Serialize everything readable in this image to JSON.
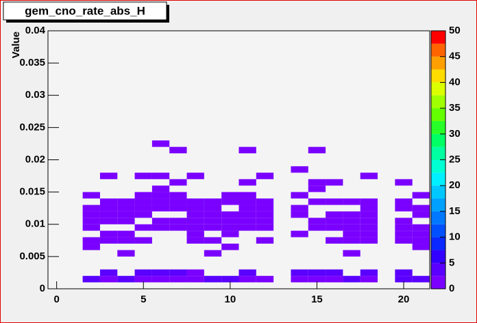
{
  "chart_data": {
    "type": "heatmap",
    "title": "gem_cno_rate_abs_H",
    "y_label": "Value",
    "xlim": [
      -0.5,
      21.5
    ],
    "ylim": [
      0,
      0.04
    ],
    "xticks": [
      0,
      5,
      10,
      15,
      20
    ],
    "yticks": [
      0,
      0.005,
      0.01,
      0.015,
      0.02,
      0.025,
      0.03,
      0.035,
      0.04
    ],
    "zlim": [
      0,
      50
    ],
    "zticks": [
      0,
      5,
      10,
      15,
      20,
      25,
      30,
      35,
      40,
      45,
      50
    ],
    "x_bin_width": 1,
    "y_bin_width": 0.001,
    "palette": [
      "#7a00ff",
      "#5a00ff",
      "#3300ff",
      "#0a28ff",
      "#0050ff",
      "#0078ff",
      "#00a0ff",
      "#00c8ff",
      "#00f0ff",
      "#00ffd2",
      "#00ffa0",
      "#00ff64",
      "#28ff28",
      "#64ff00",
      "#a0ff00",
      "#dcff00",
      "#ffdc00",
      "#ffa000",
      "#ff6400",
      "#ff0000"
    ],
    "cells": [
      [
        2,
        0.0015,
        3
      ],
      [
        3,
        0.0015,
        1
      ],
      [
        4,
        0.0015,
        3
      ],
      [
        5,
        0.0015,
        1
      ],
      [
        6,
        0.0015,
        1
      ],
      [
        7,
        0.0015,
        1
      ],
      [
        8,
        0.0015,
        1
      ],
      [
        9,
        0.0015,
        3
      ],
      [
        10,
        0.0015,
        3
      ],
      [
        11,
        0.0015,
        1
      ],
      [
        12,
        0.0015,
        1
      ],
      [
        14,
        0.0015,
        1
      ],
      [
        15,
        0.0015,
        1
      ],
      [
        16,
        0.0015,
        1
      ],
      [
        17,
        0.0015,
        3
      ],
      [
        18,
        0.0015,
        1
      ],
      [
        20,
        0.0015,
        3
      ],
      [
        21,
        0.0015,
        3
      ],
      [
        3,
        0.0025,
        3
      ],
      [
        5,
        0.0025,
        3
      ],
      [
        6,
        0.0025,
        3
      ],
      [
        7,
        0.0025,
        3
      ],
      [
        8,
        0.0025,
        1
      ],
      [
        11,
        0.0025,
        3
      ],
      [
        14,
        0.0025,
        3
      ],
      [
        15,
        0.0025,
        3
      ],
      [
        16,
        0.0025,
        3
      ],
      [
        18,
        0.0025,
        3
      ],
      [
        20,
        0.0025,
        3
      ],
      [
        4,
        0.0055,
        1
      ],
      [
        9,
        0.0055,
        1
      ],
      [
        17,
        0.0055,
        1
      ],
      [
        2,
        0.0065,
        1
      ],
      [
        10,
        0.0065,
        1
      ],
      [
        21,
        0.0065,
        1
      ],
      [
        2,
        0.0075,
        1
      ],
      [
        3,
        0.0075,
        1
      ],
      [
        4,
        0.0075,
        1
      ],
      [
        5,
        0.0075,
        1
      ],
      [
        8,
        0.0075,
        1
      ],
      [
        9,
        0.0075,
        1
      ],
      [
        12,
        0.0075,
        1
      ],
      [
        16,
        0.0075,
        1
      ],
      [
        17,
        0.0075,
        1
      ],
      [
        18,
        0.0075,
        1
      ],
      [
        20,
        0.0075,
        1
      ],
      [
        21,
        0.0075,
        1
      ],
      [
        3,
        0.0085,
        1
      ],
      [
        4,
        0.0085,
        1
      ],
      [
        8,
        0.0085,
        1
      ],
      [
        10,
        0.0085,
        1
      ],
      [
        14,
        0.0085,
        1
      ],
      [
        17,
        0.0085,
        1
      ],
      [
        18,
        0.0085,
        1
      ],
      [
        20,
        0.0085,
        1
      ],
      [
        21,
        0.0085,
        1
      ],
      [
        2,
        0.0095,
        1
      ],
      [
        5,
        0.0095,
        1
      ],
      [
        6,
        0.0095,
        1
      ],
      [
        7,
        0.0095,
        1
      ],
      [
        8,
        0.0095,
        1
      ],
      [
        9,
        0.0095,
        1
      ],
      [
        10,
        0.0095,
        1
      ],
      [
        11,
        0.0095,
        1
      ],
      [
        12,
        0.0095,
        1
      ],
      [
        15,
        0.0095,
        1
      ],
      [
        16,
        0.0095,
        1
      ],
      [
        17,
        0.0095,
        1
      ],
      [
        18,
        0.0095,
        1
      ],
      [
        20,
        0.0095,
        1
      ],
      [
        21,
        0.0095,
        1
      ],
      [
        2,
        0.0105,
        1
      ],
      [
        3,
        0.0105,
        1
      ],
      [
        4,
        0.0105,
        1
      ],
      [
        6,
        0.0105,
        1
      ],
      [
        7,
        0.0105,
        1
      ],
      [
        8,
        0.0105,
        1
      ],
      [
        9,
        0.0105,
        1
      ],
      [
        10,
        0.0105,
        1
      ],
      [
        11,
        0.0105,
        1
      ],
      [
        12,
        0.0105,
        1
      ],
      [
        15,
        0.0105,
        1
      ],
      [
        16,
        0.0105,
        1
      ],
      [
        17,
        0.0105,
        1
      ],
      [
        18,
        0.0105,
        1
      ],
      [
        20,
        0.0105,
        1
      ],
      [
        2,
        0.0115,
        1
      ],
      [
        3,
        0.0115,
        1
      ],
      [
        4,
        0.0115,
        1
      ],
      [
        5,
        0.0115,
        1
      ],
      [
        8,
        0.0115,
        1
      ],
      [
        9,
        0.0115,
        1
      ],
      [
        10,
        0.0115,
        1
      ],
      [
        11,
        0.0115,
        1
      ],
      [
        12,
        0.0115,
        1
      ],
      [
        14,
        0.0115,
        1
      ],
      [
        16,
        0.0115,
        1
      ],
      [
        17,
        0.0115,
        1
      ],
      [
        18,
        0.0115,
        1
      ],
      [
        21,
        0.0115,
        1
      ],
      [
        2,
        0.0125,
        1
      ],
      [
        3,
        0.0125,
        1
      ],
      [
        4,
        0.0125,
        1
      ],
      [
        5,
        0.0125,
        1
      ],
      [
        6,
        0.0125,
        1
      ],
      [
        7,
        0.0125,
        1
      ],
      [
        8,
        0.0125,
        1
      ],
      [
        9,
        0.0125,
        1
      ],
      [
        11,
        0.0125,
        1
      ],
      [
        12,
        0.0125,
        1
      ],
      [
        14,
        0.0125,
        1
      ],
      [
        18,
        0.0125,
        1
      ],
      [
        20,
        0.0125,
        1
      ],
      [
        21,
        0.0125,
        1
      ],
      [
        3,
        0.0135,
        1
      ],
      [
        4,
        0.0135,
        1
      ],
      [
        5,
        0.0135,
        1
      ],
      [
        6,
        0.0135,
        1
      ],
      [
        7,
        0.0135,
        1
      ],
      [
        8,
        0.0135,
        1
      ],
      [
        9,
        0.0135,
        1
      ],
      [
        10,
        0.0135,
        1
      ],
      [
        11,
        0.0135,
        1
      ],
      [
        12,
        0.0135,
        1
      ],
      [
        15,
        0.0135,
        1
      ],
      [
        16,
        0.0135,
        1
      ],
      [
        17,
        0.0135,
        1
      ],
      [
        18,
        0.0135,
        1
      ],
      [
        20,
        0.0135,
        1
      ],
      [
        2,
        0.0145,
        1
      ],
      [
        5,
        0.0145,
        1
      ],
      [
        6,
        0.0145,
        1
      ],
      [
        7,
        0.0145,
        1
      ],
      [
        10,
        0.0145,
        1
      ],
      [
        11,
        0.0145,
        1
      ],
      [
        14,
        0.0145,
        1
      ],
      [
        21,
        0.0145,
        1
      ],
      [
        6,
        0.0155,
        1
      ],
      [
        15,
        0.0155,
        1
      ],
      [
        7,
        0.0165,
        1
      ],
      [
        11,
        0.0165,
        1
      ],
      [
        15,
        0.0165,
        1
      ],
      [
        16,
        0.0165,
        1
      ],
      [
        20,
        0.0165,
        1
      ],
      [
        3,
        0.0175,
        1
      ],
      [
        5,
        0.0175,
        1
      ],
      [
        6,
        0.0175,
        1
      ],
      [
        8,
        0.0175,
        1
      ],
      [
        12,
        0.0175,
        1
      ],
      [
        18,
        0.0175,
        1
      ],
      [
        14,
        0.0185,
        1
      ],
      [
        7,
        0.0215,
        1
      ],
      [
        11,
        0.0215,
        1
      ],
      [
        15,
        0.0215,
        1
      ],
      [
        6,
        0.0225,
        1
      ]
    ]
  }
}
